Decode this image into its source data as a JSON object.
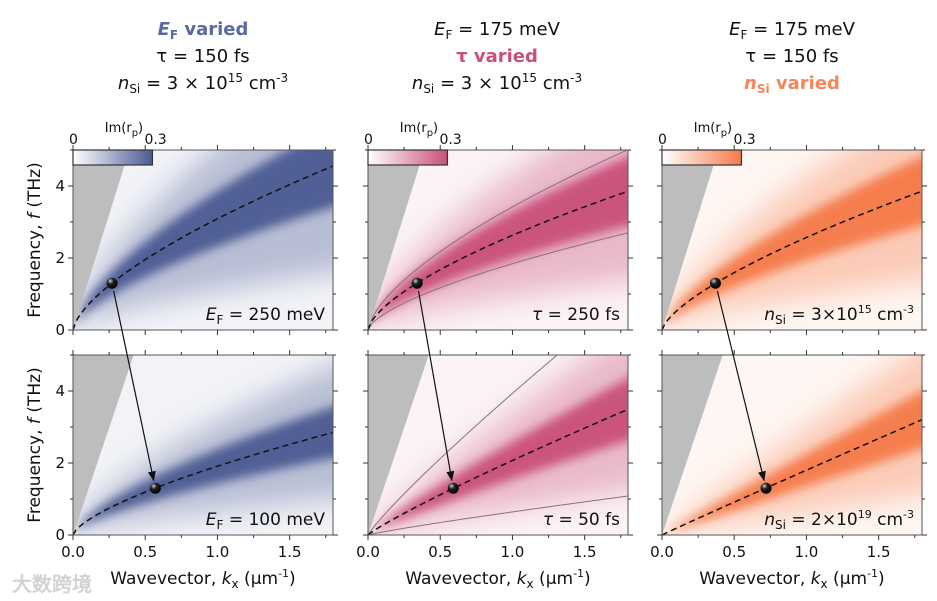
{
  "headers": [
    {
      "line1": {
        "E": "E",
        "sub": "F",
        "rest": " varied"
      },
      "line2": "τ = 150 fs",
      "line3": {
        "n": "n",
        "sub": "Si",
        "mid": " = 3 × 10",
        "sup": "15",
        "unit": " cm",
        "unit_sup": "-3"
      },
      "highlight": 1,
      "color": "#5a6aa0"
    },
    {
      "line1": {
        "E": "E",
        "sub": "F",
        "rest": " = 175 meV"
      },
      "line2": "τ varied",
      "line3": {
        "n": "n",
        "sub": "Si",
        "mid": " = 3 × 10",
        "sup": "15",
        "unit": " cm",
        "unit_sup": "-3"
      },
      "highlight": 2,
      "color": "#c9507a"
    },
    {
      "line1": {
        "E": "E",
        "sub": "F",
        "rest": " = 175 meV"
      },
      "line2": "τ = 150 fs",
      "line3": {
        "n": "n",
        "sub": "Si",
        "mid": " varied",
        "sup": "",
        "unit": "",
        "unit_sup": ""
      },
      "highlight": 3,
      "color": "#f5855a"
    }
  ],
  "colorbar": {
    "label": "Im(r",
    "label_sub": "p",
    "label_end": ")",
    "min": "0",
    "max": "0.3"
  },
  "axes": {
    "ylabel": {
      "pre": "Frequency, ",
      "var": "f",
      "post": " (THz)"
    },
    "xlabel": {
      "pre": "Wavevector, ",
      "var": "k",
      "sub": "x",
      "post": " (μm",
      "sup": "-1",
      "end": ")"
    },
    "xticks": [
      "0.0",
      "0.5",
      "1.0",
      "1.5"
    ],
    "yticks": [
      "0",
      "2",
      "4"
    ]
  },
  "watermark": "大数跨境",
  "chart_data": {
    "type": "heatmap",
    "xlim": [
      0,
      1.8
    ],
    "ylim": [
      0,
      5
    ],
    "xlabel": "Wavevector, kx (μm-1)",
    "ylabel": "Frequency, f (THz)",
    "colorbar_range": [
      0,
      0.3
    ],
    "panels": [
      {
        "row": 0,
        "col": 0,
        "color": "#4b5a93",
        "label": {
          "a": "E",
          "b": "F",
          "c": " = 250 meV",
          "sup": "",
          "d": ""
        },
        "disp_a": 3.09,
        "disp_p": 0.66,
        "cone_k": 0.39,
        "dot": [
          0.27,
          1.3
        ],
        "lines": []
      },
      {
        "row": 1,
        "col": 0,
        "color": "#4b5a93",
        "label": {
          "a": "E",
          "b": "F",
          "c": " = 100 meV",
          "sup": "",
          "d": ""
        },
        "disp_a": 1.91,
        "disp_p": 0.68,
        "cone_k": 0.42,
        "dot": [
          0.57,
          1.3
        ],
        "lines": []
      },
      {
        "row": 0,
        "col": 1,
        "color": "#c9507a",
        "label": {
          "a": "τ",
          "b": "",
          "c": " = 250 fs",
          "sup": "",
          "d": ""
        },
        "disp_a": 2.63,
        "disp_p": 0.65,
        "cone_k": 0.39,
        "dot": [
          0.34,
          1.3
        ],
        "lines": [
          1.3,
          0.7
        ]
      },
      {
        "row": 1,
        "col": 1,
        "color": "#c9507a",
        "label": {
          "a": "τ",
          "b": "",
          "c": " = 50 fs",
          "sup": "",
          "d": ""
        },
        "disp_a": 2.07,
        "disp_p": 0.89,
        "cone_k": 0.42,
        "dot": [
          0.59,
          1.3
        ],
        "lines": [
          1.9,
          0.31
        ]
      },
      {
        "row": 0,
        "col": 2,
        "color": "#f57a48",
        "label": {
          "a": "n",
          "b": "Si",
          "c": " = 3×10",
          "sup": "15",
          "d": " cm",
          "sup2": "-3"
        },
        "disp_a": 2.57,
        "disp_p": 0.69,
        "cone_k": 0.39,
        "dot": [
          0.37,
          1.3
        ],
        "lines": []
      },
      {
        "row": 1,
        "col": 2,
        "color": "#f57a48",
        "label": {
          "a": "n",
          "b": "Si",
          "c": " = 2×10",
          "sup": "19",
          "d": " cm",
          "sup2": "-3"
        },
        "disp_a": 1.8,
        "disp_p": 0.98,
        "cone_k": 0.42,
        "dot": [
          0.72,
          1.3
        ],
        "lines": []
      }
    ]
  }
}
